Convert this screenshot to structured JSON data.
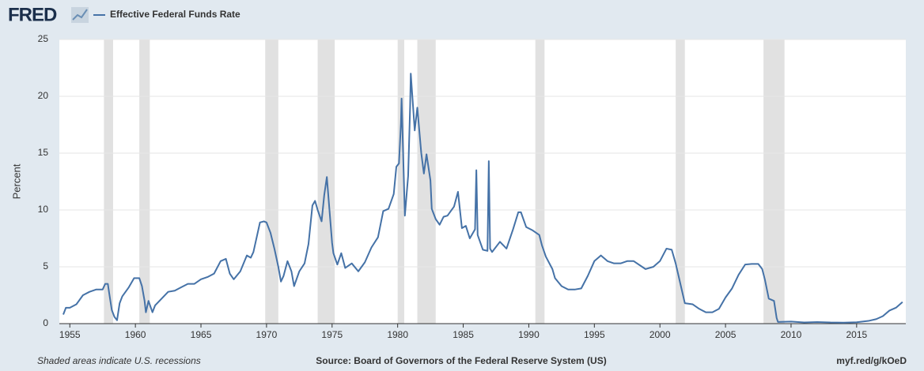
{
  "chart_data": {
    "type": "line",
    "logo": "FRED",
    "y_label": "Percent",
    "footer_left": "Shaded areas indicate U.S. recessions",
    "source": "Source: Board of Governors of the Federal Reserve System (US)",
    "link": "myf.red/g/kOeD",
    "xlim": [
      1954.2,
      2018.75
    ],
    "ylim": [
      0,
      25
    ],
    "xticks": [
      1955,
      1960,
      1965,
      1970,
      1975,
      1980,
      1985,
      1990,
      1995,
      2000,
      2005,
      2010,
      2015
    ],
    "yticks": [
      0,
      5,
      10,
      15,
      20,
      25
    ],
    "grid": true,
    "recession_color": "#e1e1e1",
    "recessions": [
      [
        1957.6,
        1958.3
      ],
      [
        1960.3,
        1961.1
      ],
      [
        1969.9,
        1970.9
      ],
      [
        1973.9,
        1975.2
      ],
      [
        1980.0,
        1980.5
      ],
      [
        1981.5,
        1982.9
      ],
      [
        1990.5,
        1991.2
      ],
      [
        2001.2,
        2001.9
      ],
      [
        2007.9,
        2009.5
      ]
    ],
    "x": [
      1954.5,
      1954.7,
      1955.0,
      1955.5,
      1956.0,
      1956.5,
      1957.0,
      1957.5,
      1957.7,
      1957.9,
      1958.0,
      1958.2,
      1958.4,
      1958.6,
      1958.8,
      1959.0,
      1959.5,
      1959.9,
      1960.3,
      1960.5,
      1960.7,
      1960.8,
      1961.0,
      1961.3,
      1961.5,
      1962.0,
      1962.5,
      1963.0,
      1963.5,
      1964.0,
      1964.5,
      1965.0,
      1965.5,
      1966.0,
      1966.5,
      1966.9,
      1967.2,
      1967.5,
      1968.0,
      1968.5,
      1968.8,
      1969.0,
      1969.5,
      1969.8,
      1970.0,
      1970.3,
      1970.6,
      1970.9,
      1971.1,
      1971.3,
      1971.6,
      1971.9,
      1972.1,
      1972.5,
      1972.9,
      1973.2,
      1973.5,
      1973.7,
      1973.9,
      1974.2,
      1974.4,
      1974.6,
      1974.8,
      1975.0,
      1975.1,
      1975.4,
      1975.7,
      1976.0,
      1976.5,
      1977.0,
      1977.5,
      1978.0,
      1978.5,
      1978.9,
      1979.3,
      1979.7,
      1979.9,
      1980.1,
      1980.25,
      1980.3,
      1980.55,
      1980.8,
      1980.95,
      1981.0,
      1981.3,
      1981.5,
      1981.8,
      1982.0,
      1982.2,
      1982.5,
      1982.6,
      1982.9,
      1983.2,
      1983.5,
      1983.8,
      1984.3,
      1984.6,
      1984.9,
      1985.2,
      1985.5,
      1985.9,
      1986.0,
      1986.1,
      1986.5,
      1986.85,
      1986.95,
      1987.05,
      1987.2,
      1987.8,
      1988.3,
      1988.8,
      1989.2,
      1989.4,
      1989.8,
      1990.3,
      1990.8,
      1991.0,
      1991.3,
      1991.8,
      1992.0,
      1992.5,
      1993.0,
      1993.5,
      1994.0,
      1994.5,
      1995.0,
      1995.5,
      1996.0,
      1996.5,
      1997.0,
      1997.5,
      1998.0,
      1998.9,
      1999.5,
      2000.0,
      2000.5,
      2000.9,
      2001.2,
      2001.5,
      2001.9,
      2002.5,
      2003.0,
      2003.5,
      2004.0,
      2004.5,
      2005.0,
      2005.5,
      2006.0,
      2006.5,
      2007.0,
      2007.5,
      2007.8,
      2008.0,
      2008.3,
      2008.7,
      2008.9,
      2009.0,
      2010.0,
      2011.0,
      2012.0,
      2013.0,
      2014.0,
      2015.0,
      2015.9,
      2016.5,
      2017.0,
      2017.5,
      2018.0,
      2018.5
    ],
    "series": [
      {
        "name": "Effective Federal Funds Rate",
        "color": "#4572a7",
        "values": [
          0.8,
          1.4,
          1.4,
          1.7,
          2.5,
          2.8,
          3.0,
          3.0,
          3.5,
          3.5,
          2.7,
          1.2,
          0.6,
          0.3,
          1.8,
          2.4,
          3.2,
          4.0,
          4.0,
          3.3,
          2.0,
          1.0,
          2.0,
          1.0,
          1.6,
          2.2,
          2.8,
          2.9,
          3.2,
          3.5,
          3.5,
          3.9,
          4.1,
          4.4,
          5.5,
          5.7,
          4.4,
          3.9,
          4.6,
          6.0,
          5.8,
          6.3,
          8.9,
          9.0,
          8.9,
          8.0,
          6.6,
          5.0,
          3.7,
          4.2,
          5.5,
          4.6,
          3.3,
          4.6,
          5.3,
          7.0,
          10.4,
          10.8,
          10.0,
          9.0,
          11.3,
          12.9,
          10.0,
          7.1,
          6.2,
          5.2,
          6.2,
          4.9,
          5.3,
          4.6,
          5.4,
          6.7,
          7.6,
          9.9,
          10.1,
          11.4,
          13.8,
          14.1,
          17.6,
          19.8,
          9.5,
          13.0,
          19.1,
          22.0,
          17.0,
          19.0,
          15.0,
          13.2,
          14.9,
          12.6,
          10.1,
          9.2,
          8.7,
          9.4,
          9.5,
          10.3,
          11.6,
          8.4,
          8.6,
          7.5,
          8.3,
          13.5,
          7.8,
          6.5,
          6.4,
          14.3,
          6.6,
          6.3,
          7.2,
          6.6,
          8.3,
          9.8,
          9.8,
          8.5,
          8.2,
          7.8,
          6.9,
          5.9,
          4.8,
          4.0,
          3.3,
          3.0,
          3.0,
          3.1,
          4.2,
          5.5,
          6.0,
          5.5,
          5.3,
          5.3,
          5.5,
          5.5,
          4.8,
          5.0,
          5.5,
          6.6,
          6.5,
          5.3,
          3.8,
          1.8,
          1.7,
          1.3,
          1.0,
          1.0,
          1.3,
          2.3,
          3.1,
          4.3,
          5.2,
          5.25,
          5.25,
          4.8,
          3.9,
          2.2,
          2.0,
          0.5,
          0.15,
          0.18,
          0.1,
          0.14,
          0.1,
          0.09,
          0.12,
          0.24,
          0.4,
          0.66,
          1.15,
          1.4,
          1.9
        ]
      }
    ]
  }
}
